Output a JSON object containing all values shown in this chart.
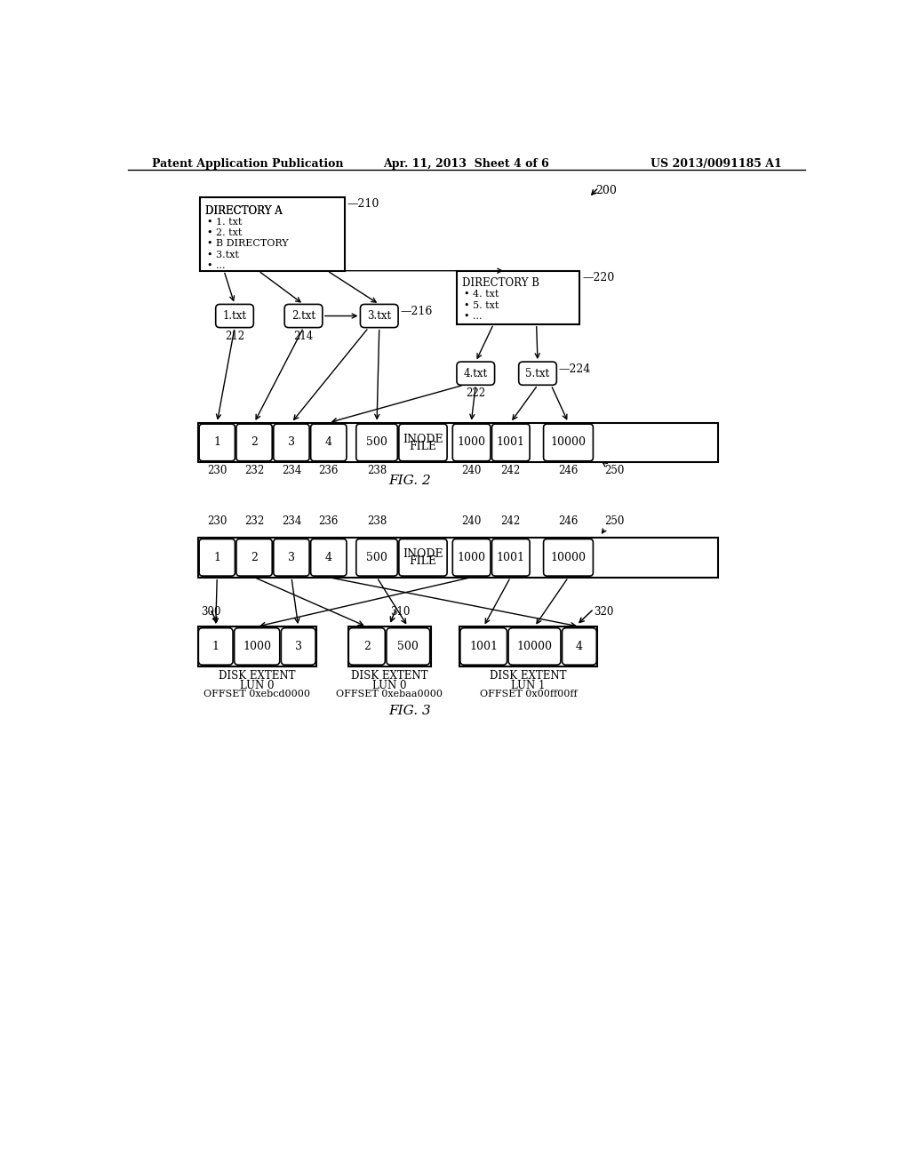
{
  "header_left": "Patent Application Publication",
  "header_mid": "Apr. 11, 2013  Sheet 4 of 6",
  "header_right": "US 2013/0091185 A1",
  "fig2_label": "FIG. 2",
  "fig3_label": "FIG. 3",
  "bg_color": "#ffffff"
}
